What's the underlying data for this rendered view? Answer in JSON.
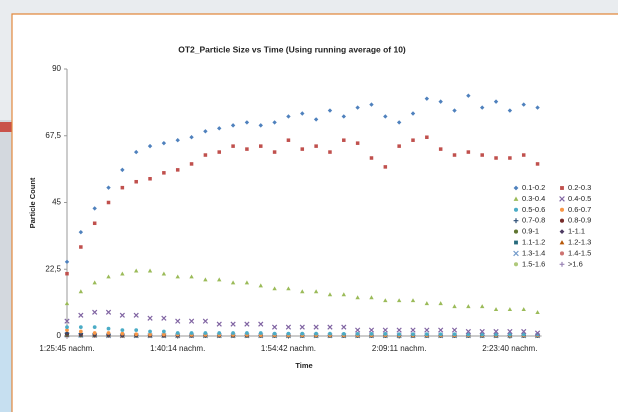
{
  "chart_data": {
    "type": "scatter",
    "title": "OT2_Particle Size vs Time (Using running average of 10)",
    "x_label": "Time",
    "y_label": "Particle Count",
    "legend": "right",
    "grid": false,
    "categories": [
      "1:25:45 nachm.",
      null,
      null,
      null,
      null,
      null,
      null,
      null,
      "1:40:14 nachm.",
      null,
      null,
      null,
      null,
      null,
      null,
      null,
      "1:54:42 nachm.",
      null,
      null,
      null,
      null,
      null,
      null,
      null,
      "2:09:11 nachm.",
      null,
      null,
      null,
      null,
      null,
      null,
      null,
      "2:23:40 nachm.",
      null,
      null
    ],
    "ylim": [
      0,
      90
    ],
    "yticks": [
      0,
      {
        "value": 22.5,
        "label": "22,5"
      },
      45,
      {
        "value": 67.5,
        "label": "67,5"
      },
      90
    ],
    "series": [
      {
        "name": "0.1-0.2",
        "color": "#4f81bd",
        "marker": "diamond",
        "values": [
          25,
          35,
          43,
          50,
          56,
          62,
          64,
          65,
          66,
          67,
          69,
          70,
          71,
          72,
          71,
          72,
          74,
          75,
          73,
          76,
          74,
          77,
          78,
          74,
          72,
          75,
          80,
          79,
          76,
          81,
          77,
          79,
          76,
          78,
          77
        ]
      },
      {
        "name": "0.2-0.3",
        "color": "#c0504d",
        "marker": "square",
        "values": [
          21,
          30,
          38,
          45,
          50,
          52,
          53,
          55,
          56,
          58,
          61,
          62,
          64,
          63,
          64,
          62,
          66,
          63,
          64,
          62,
          66,
          65,
          60,
          57,
          64,
          66,
          67,
          63,
          61,
          62,
          61,
          60,
          60,
          61,
          58
        ]
      },
      {
        "name": "0.3-0.4",
        "color": "#9bbb59",
        "marker": "triangle",
        "values": [
          11,
          15,
          18,
          20,
          21,
          22,
          22,
          21,
          20,
          20,
          19,
          19,
          18,
          18,
          17,
          16,
          16,
          15,
          15,
          14,
          14,
          13,
          13,
          12,
          12,
          12,
          11,
          11,
          10,
          10,
          10,
          9,
          9,
          9,
          8
        ]
      },
      {
        "name": "0.4-0.5",
        "color": "#8064a2",
        "marker": "x",
        "values": [
          5,
          7,
          8,
          8,
          7,
          7,
          6,
          6,
          5,
          5,
          5,
          4,
          4,
          4,
          4,
          3,
          3,
          3,
          3,
          3,
          3,
          2,
          2,
          2,
          2,
          2,
          2,
          2,
          2,
          1.5,
          1.5,
          1.5,
          1.5,
          1.5,
          1
        ]
      },
      {
        "name": "0.5-0.6",
        "color": "#4bacc6",
        "marker": "circle",
        "values": [
          3,
          3,
          3,
          2.5,
          2,
          2,
          1.5,
          1.5,
          1,
          1,
          1,
          1,
          1,
          1,
          1,
          0.8,
          0.8,
          0.8,
          0.8,
          0.8,
          0.7,
          0.7,
          0.7,
          0.7,
          0.6,
          0.6,
          0.6,
          0.6,
          0.6,
          0.5,
          0.5,
          0.5,
          0.5,
          0.5,
          0.5
        ]
      },
      {
        "name": "0.6-0.7",
        "color": "#f79646",
        "marker": "circle",
        "values": [
          2,
          1.5,
          1,
          1,
          0.8,
          0.6,
          0.5,
          0.5,
          0.5,
          0.4,
          0.4,
          0.4,
          0.4,
          0.4,
          0.3,
          0.3,
          0.3,
          0.3,
          0.3,
          0.3,
          0.3,
          0.3,
          0.3,
          0.3,
          0.3,
          0.3,
          0.3,
          0.3,
          0.3,
          0.3,
          0.3,
          0.3,
          0.3,
          0.3,
          0.3
        ]
      },
      {
        "name": "0.7-0.8",
        "color": "#2c4d75",
        "marker": "plus",
        "values": [
          1,
          0.8,
          0.6,
          0.5,
          0.4,
          0.3,
          0.3,
          0.3,
          0.3,
          0.3,
          0.2,
          0.2,
          0.2,
          0.2,
          0.2,
          0.2,
          0.2,
          0.2,
          0.2,
          0.2,
          0.2,
          0.2,
          0.2,
          0.2,
          0.2,
          0.2,
          0.2,
          0.2,
          0.2,
          0.2,
          0.2,
          0.2,
          0.2,
          0.2,
          0.2
        ]
      },
      {
        "name": "0.8-0.9",
        "color": "#772c2a",
        "marker": "circle",
        "values": [
          0.8,
          0.6,
          0.5,
          0.4,
          0.3,
          0.3,
          0.2,
          0.2,
          0.2,
          0.2,
          0.2,
          0.2,
          0.2,
          0.2,
          0.2,
          0.2,
          0.2,
          0.2,
          0.2,
          0.2,
          0.2,
          0.2,
          0.2,
          0.2,
          0.2,
          0.2,
          0.2,
          0.2,
          0.2,
          0.2,
          0.2,
          0.2,
          0.2,
          0.2,
          0.2
        ]
      },
      {
        "name": "0.9-1",
        "color": "#5f7530",
        "marker": "circle",
        "values": [
          0.6,
          0.5,
          0.4,
          0.3,
          0.3,
          0.2,
          0.2,
          0.2,
          0.2,
          0.2,
          0.1,
          0.1,
          0.1,
          0.1,
          0.1,
          0.1,
          0.1,
          0.1,
          0.1,
          0.1,
          0.1,
          0.1,
          0.1,
          0.1,
          0.1,
          0.1,
          0.1,
          0.1,
          0.1,
          0.1,
          0.1,
          0.1,
          0.1,
          0.1,
          0.1
        ]
      },
      {
        "name": "1-1.1",
        "color": "#4d3b62",
        "marker": "diamond",
        "values": [
          0.5,
          0.4,
          0.3,
          0.3,
          0.2,
          0.2,
          0.2,
          0.1,
          0.1,
          0.1,
          0.1,
          0.1,
          0.1,
          0.1,
          0.1,
          0.1,
          0.1,
          0.1,
          0.1,
          0.1,
          0.1,
          0.1,
          0.1,
          0.1,
          0.1,
          0.1,
          0.1,
          0.1,
          0.1,
          0.1,
          0.1,
          0.1,
          0.1,
          0.1,
          0.1
        ]
      },
      {
        "name": "1.1-1.2",
        "color": "#276a7c",
        "marker": "square",
        "values": [
          0.4,
          0.3,
          0.3,
          0.2,
          0.2,
          0.1,
          0.1,
          0.1,
          0.1,
          0.1,
          0.1,
          0.1,
          0.1,
          0.1,
          0.1,
          0.1,
          0.1,
          0.1,
          0.1,
          0.1,
          0.1,
          0.1,
          0.1,
          0.1,
          0.1,
          0.1,
          0.1,
          0.1,
          0.1,
          0.1,
          0.1,
          0.1,
          0.1,
          0.1,
          0.1
        ]
      },
      {
        "name": "1.2-1.3",
        "color": "#b65708",
        "marker": "triangle",
        "values": [
          0.3,
          0.3,
          0.2,
          0.2,
          0.1,
          0.1,
          0.1,
          0.1,
          0.1,
          0.1,
          0.1,
          0.1,
          0.1,
          0.1,
          0.1,
          0.1,
          0.1,
          0.1,
          0.1,
          0.1,
          0.1,
          0.1,
          0.1,
          0.1,
          0.1,
          0.1,
          0.1,
          0.1,
          0.1,
          0.1,
          0.1,
          0.1,
          0.1,
          0.1,
          0.1
        ]
      },
      {
        "name": "1.3-1.4",
        "color": "#729aca",
        "marker": "x",
        "values": [
          0.3,
          0.2,
          0.2,
          0.1,
          0.1,
          0.1,
          0.1,
          0.1,
          0.1,
          0.1,
          0.1,
          0.1,
          0.1,
          0.1,
          0.1,
          0.1,
          0.1,
          0.1,
          0.1,
          0.1,
          0.1,
          0.1,
          0.1,
          0.1,
          0.1,
          0.1,
          0.1,
          0.1,
          0.1,
          0.1,
          0.1,
          0.1,
          0.1,
          0.1,
          0.1
        ]
      },
      {
        "name": "1.4-1.5",
        "color": "#cd7371",
        "marker": "circle",
        "values": [
          0.2,
          0.2,
          0.1,
          0.1,
          0.1,
          0.1,
          0.1,
          0.1,
          0.1,
          0.1,
          0.1,
          0.1,
          0.1,
          0.1,
          0.1,
          0.1,
          0.1,
          0.1,
          0.1,
          0.1,
          0.1,
          0.1,
          0.1,
          0.1,
          0.1,
          0.1,
          0.1,
          0.1,
          0.1,
          0.1,
          0.1,
          0.1,
          0.1,
          0.1,
          0.1
        ]
      },
      {
        "name": "1.5-1.6",
        "color": "#afc97a",
        "marker": "circle",
        "values": [
          0.2,
          0.1,
          0.1,
          0.1,
          0.1,
          0.1,
          0.1,
          0.1,
          0.1,
          0.1,
          0.1,
          0.1,
          0.1,
          0.1,
          0.1,
          0.1,
          0.1,
          0.1,
          0.1,
          0.1,
          0.1,
          0.1,
          0.1,
          0.1,
          0.1,
          0.1,
          0.1,
          0.1,
          0.1,
          0.1,
          0.1,
          0.1,
          0.1,
          0.1,
          0.1
        ]
      },
      {
        "name": ">1.6",
        "color": "#9983b5",
        "marker": "plus",
        "values": [
          0.1,
          0.1,
          0.1,
          0.1,
          0.1,
          0.1,
          0.1,
          0.1,
          0.1,
          0.1,
          0.1,
          0.1,
          0.1,
          0.1,
          0.1,
          0.1,
          0.1,
          0.1,
          0.1,
          0.1,
          0.1,
          0.1,
          0.1,
          0.1,
          0.1,
          0.1,
          0.1,
          0.1,
          0.1,
          0.1,
          0.1,
          0.1,
          0.1,
          0.1,
          0.1
        ]
      }
    ]
  }
}
